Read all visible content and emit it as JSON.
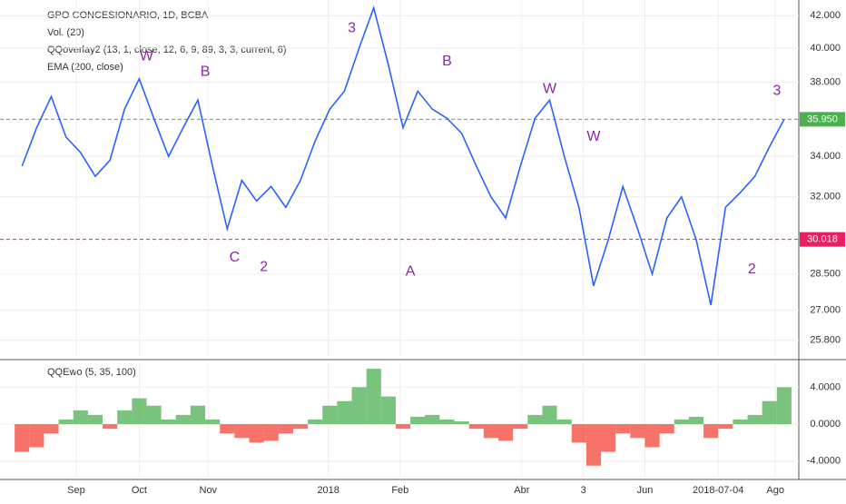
{
  "chart_data": [
    {
      "type": "line",
      "title": "GPO CONCESIONARIO, 1D, BCBA",
      "legend_items": [
        "Vol. (20)",
        "QQoverlay2 (13, 1, close, 12, 6, 9, 89, 3, 3, current, 6)",
        "EMA (200, close)"
      ],
      "xlim": [
        -1.5,
        53
      ],
      "xticks": [
        {
          "value": 3.7,
          "label": "Sep"
        },
        {
          "value": 8,
          "label": "Oct"
        },
        {
          "value": 12.7,
          "label": "Nov"
        },
        {
          "value": 20.9,
          "label": "2018"
        },
        {
          "value": 25.8,
          "label": "Feb"
        },
        {
          "value": 34.1,
          "label": "Abr"
        },
        {
          "value": 38.3,
          "label": "3"
        },
        {
          "value": 42.5,
          "label": "Jun"
        },
        {
          "value": 47.5,
          "label": "2018-07-04"
        },
        {
          "value": 51.4,
          "label": "Ago"
        }
      ],
      "ylim": [
        25.2,
        43.0
      ],
      "log_scale": true,
      "yticks": [
        {
          "value": 25.8,
          "label": "25.800"
        },
        {
          "value": 27,
          "label": "27.000"
        },
        {
          "value": 28.5,
          "label": "28.500"
        },
        {
          "value": 32,
          "label": "32.000"
        },
        {
          "value": 34,
          "label": "34.000"
        },
        {
          "value": 38,
          "label": "38.000"
        },
        {
          "value": 40,
          "label": "40.000"
        },
        {
          "value": 42,
          "label": "42.000"
        }
      ],
      "price_lines": [
        {
          "value": 35.95,
          "label": "35.950",
          "color": "#4caf50"
        },
        {
          "value": 30.018,
          "label": "30.018",
          "color": "#e91e63"
        }
      ],
      "series": [
        {
          "color": "#2962ff",
          "values": [
            33.5,
            35.5,
            37.2,
            35.0,
            34.2,
            33.0,
            33.8,
            36.5,
            38.2,
            36.0,
            34.0,
            35.5,
            37.0,
            33.5,
            30.5,
            32.8,
            31.8,
            32.5,
            31.5,
            32.8,
            34.8,
            36.5,
            37.5,
            40.0,
            42.5,
            39.0,
            35.5,
            37.5,
            36.5,
            36.0,
            35.2,
            33.5,
            32.0,
            31.0,
            33.5,
            36.0,
            37.0,
            34.0,
            31.5,
            28.0,
            30.0,
            32.5,
            30.5,
            28.5,
            31.0,
            32.0,
            30.0,
            27.2,
            31.5,
            32.2,
            33.0,
            34.5,
            35.95
          ]
        }
      ],
      "annotations": [
        {
          "text": "W",
          "x": 8.5,
          "y": 39.5
        },
        {
          "text": "B",
          "x": 12.5,
          "y": 38.6
        },
        {
          "text": "C",
          "x": 14.5,
          "y": 29.2
        },
        {
          "text": "2",
          "x": 16.5,
          "y": 28.8
        },
        {
          "text": "3",
          "x": 22.5,
          "y": 41.2
        },
        {
          "text": "B",
          "x": 29,
          "y": 39.2
        },
        {
          "text": "A",
          "x": 26.5,
          "y": 28.6
        },
        {
          "text": "W",
          "x": 36,
          "y": 37.6
        },
        {
          "text": "W",
          "x": 39,
          "y": 35.0
        },
        {
          "text": "2",
          "x": 49.8,
          "y": 28.7
        },
        {
          "text": "3",
          "x": 51.5,
          "y": 37.5
        }
      ]
    },
    {
      "type": "area",
      "title": "QQEwo (5, 35, 100)",
      "xlim": [
        -1.5,
        53
      ],
      "ylim": [
        -5.7,
        6.6
      ],
      "yticks": [
        {
          "value": 4,
          "label": "4.0000"
        },
        {
          "value": 0,
          "label": "0.0000"
        },
        {
          "value": -4,
          "label": "-4.0000"
        }
      ],
      "colors": {
        "positive": "#4caf50",
        "negative": "#f44336"
      },
      "series": [
        {
          "values": [
            -3,
            -2.5,
            -1,
            0.5,
            1.5,
            1,
            -0.5,
            1.5,
            2.8,
            2,
            0.5,
            1,
            2,
            0.5,
            -1,
            -1.5,
            -2,
            -1.8,
            -1,
            -0.5,
            0.5,
            2,
            2.5,
            4,
            6,
            3,
            -0.5,
            0.8,
            1,
            0.5,
            0.3,
            -0.5,
            -1.5,
            -1.8,
            -0.5,
            1,
            2,
            0.5,
            -2,
            -4.5,
            -3,
            -1,
            -1.5,
            -2.5,
            -1,
            0.5,
            0.8,
            -1.5,
            -0.5,
            0.5,
            1,
            2.5,
            4
          ]
        }
      ]
    }
  ]
}
